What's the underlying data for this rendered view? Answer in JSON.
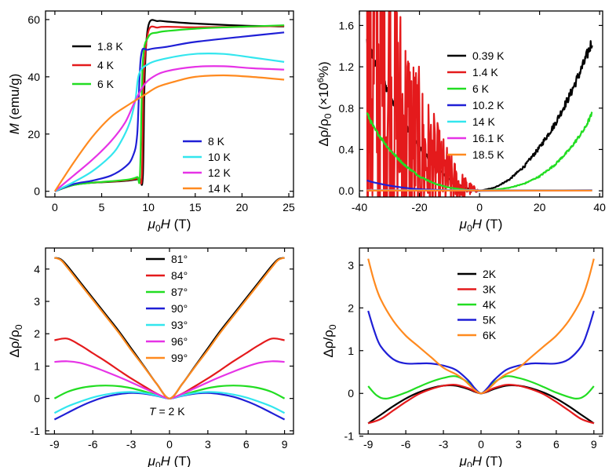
{
  "chart_data": [
    {
      "type": "line",
      "panel": "top-left",
      "xlabel_symbol": "μ",
      "xlabel_sub": "0",
      "xlabel_var": "H",
      "xlabel_unit": " (T)",
      "ylabel_var": "M",
      "ylabel_unit": " (emu/g)",
      "xlim": [
        -1,
        25.5
      ],
      "ylim": [
        -2,
        63
      ],
      "xticks": [
        0,
        5,
        10,
        15,
        20,
        25
      ],
      "yticks": [
        0,
        20,
        40,
        60
      ],
      "grid": false,
      "legend_placement": "top-left and center-right",
      "series": [
        {
          "name": "1.8 K",
          "color": "#000000",
          "legend_group": 0,
          "x": [
            0,
            2,
            4,
            6,
            8,
            9,
            9.4,
            9.6,
            10,
            11,
            12,
            15,
            20,
            24.5
          ],
          "y": [
            0,
            2.2,
            3,
            3.3,
            3.8,
            4.3,
            5,
            40,
            58,
            59.5,
            59.3,
            58.6,
            57.9,
            57.6
          ]
        },
        {
          "name": "4 K",
          "color": "#e41a1c",
          "legend_group": 0,
          "x": [
            0,
            2,
            4,
            6,
            8,
            9,
            9.3,
            9.5,
            10,
            11,
            12,
            15,
            20,
            24.5
          ],
          "y": [
            0,
            2.3,
            3,
            3.4,
            4,
            4.6,
            5.5,
            40,
            56,
            57.2,
            57.5,
            57.3,
            57.5,
            57.8
          ]
        },
        {
          "name": "6 K",
          "color": "#22dd22",
          "legend_group": 0,
          "x": [
            0,
            2,
            4,
            6,
            8,
            8.8,
            9.1,
            9.4,
            10,
            11,
            12,
            15,
            20,
            24.5
          ],
          "y": [
            0,
            2.2,
            3,
            3.5,
            4.2,
            5,
            6,
            45,
            54,
            55.5,
            56,
            56.8,
            57.5,
            58
          ]
        },
        {
          "name": "8 K",
          "color": "#1f1fd6",
          "legend_group": 1,
          "x": [
            0,
            2,
            4,
            6,
            7.5,
            8.3,
            8.8,
            9.2,
            10,
            12,
            15,
            20,
            24.5
          ],
          "y": [
            0,
            2.5,
            3.7,
            5.5,
            8.5,
            12,
            20,
            47,
            49.5,
            50.5,
            52.2,
            54,
            55.5
          ]
        },
        {
          "name": "10 K",
          "color": "#33e6ee",
          "legend_group": 1,
          "x": [
            0,
            2,
            4,
            6,
            7,
            8,
            8.6,
            9,
            10,
            12,
            15,
            18,
            21,
            24.5
          ],
          "y": [
            0,
            3.2,
            7,
            12.5,
            17,
            24,
            32,
            41,
            44.5,
            46.5,
            48,
            48,
            46.8,
            45.2
          ]
        },
        {
          "name": "12 K",
          "color": "#e633e6",
          "legend_group": 1,
          "x": [
            0,
            2,
            4,
            6,
            7.5,
            8.5,
            9.5,
            10.5,
            12,
            15,
            18,
            21,
            24.5
          ],
          "y": [
            0,
            5.5,
            11,
            17.5,
            24,
            31,
            37,
            40,
            42,
            43.5,
            43.7,
            43,
            42.5
          ]
        },
        {
          "name": "14 K",
          "color": "#ff8a1f",
          "legend_group": 1,
          "x": [
            0,
            2,
            4,
            6,
            8,
            9.5,
            11,
            13,
            15,
            18,
            21,
            24.5
          ],
          "y": [
            0,
            10,
            19,
            26,
            30.5,
            33.5,
            36.5,
            38.5,
            40,
            40.5,
            40,
            39
          ]
        }
      ]
    },
    {
      "type": "line",
      "panel": "top-right",
      "xlabel_symbol": "μ",
      "xlabel_sub": "0",
      "xlabel_var": "H",
      "xlabel_unit": " (T)",
      "ylabel_text": "Δρ/ρ",
      "ylabel_sub": "0",
      "ylabel_unit": " (×10",
      "ylabel_sup": "6",
      "ylabel_end": "%)",
      "xlim": [
        -40,
        41
      ],
      "ylim": [
        -0.06,
        1.74
      ],
      "xticks": [
        -40,
        -20,
        0,
        20,
        40
      ],
      "yticks": [
        0.0,
        0.4,
        0.8,
        1.2,
        1.6
      ],
      "ytick_labels": [
        "0.0",
        "0.4",
        "0.8",
        "1.2",
        "1.6"
      ],
      "grid": false,
      "legend_placement": "right",
      "series": [
        {
          "name": "0.39 K",
          "color": "#000000",
          "noise": 0.06,
          "x": [
            -37.5,
            -35,
            -30,
            -25,
            -20,
            -15,
            -10,
            -5,
            0,
            5,
            10,
            15,
            20,
            25,
            30,
            35,
            37.5
          ],
          "y": [
            1.45,
            1.25,
            0.92,
            0.64,
            0.42,
            0.24,
            0.11,
            0.03,
            0,
            0.03,
            0.11,
            0.24,
            0.42,
            0.64,
            0.92,
            1.25,
            1.45
          ]
        },
        {
          "name": "1.4 K",
          "color": "#e41a1c",
          "noise": 0.06,
          "x": [
            -37.5,
            -35,
            -30,
            -25,
            -20,
            -15,
            -10,
            -5,
            0
          ],
          "y": [
            1.3,
            1.12,
            0.84,
            0.59,
            0.38,
            0.22,
            0.1,
            0.03,
            0
          ]
        },
        {
          "name": "6 K",
          "color": "#22dd22",
          "noise": 0.02,
          "x": [
            -37.5,
            -35,
            -30,
            -25,
            -20,
            -15,
            -10,
            -5,
            0,
            5,
            10,
            15,
            20,
            25,
            30,
            35,
            37.5
          ],
          "y": [
            0.75,
            0.6,
            0.4,
            0.25,
            0.14,
            0.07,
            0.03,
            0.01,
            0,
            0.01,
            0.03,
            0.07,
            0.14,
            0.25,
            0.4,
            0.6,
            0.75
          ]
        },
        {
          "name": "10.2 K",
          "color": "#1f1fd6",
          "noise": 0,
          "x": [
            -37.5,
            -35,
            -30,
            -25,
            -20,
            -10,
            0,
            37.5
          ],
          "y": [
            0.1,
            0.08,
            0.05,
            0.03,
            0.015,
            0.005,
            0,
            0.005
          ]
        },
        {
          "name": "14 K",
          "color": "#33e6ee",
          "noise": 0,
          "x": [
            -37.5,
            37.5
          ],
          "y": [
            0.005,
            0.005
          ]
        },
        {
          "name": "16.1 K",
          "color": "#e633e6",
          "noise": 0,
          "x": [
            -37.5,
            37.5
          ],
          "y": [
            0.003,
            0.003
          ]
        },
        {
          "name": "18.5 K",
          "color": "#ff8a1f",
          "noise": 0,
          "x": [
            -37.5,
            37.5
          ],
          "y": [
            0.002,
            0.002
          ]
        }
      ]
    },
    {
      "type": "line",
      "panel": "bottom-left",
      "xlabel_symbol": "μ",
      "xlabel_sub": "0",
      "xlabel_var": "H",
      "xlabel_unit": " (T)",
      "ylabel_text": "Δρ/ρ",
      "ylabel_sub": "0",
      "xlim": [
        -9.7,
        9.7
      ],
      "ylim": [
        -1.1,
        4.65
      ],
      "xticks": [
        -9,
        -6,
        -3,
        0,
        3,
        6,
        9
      ],
      "yticks": [
        -1,
        0,
        1,
        2,
        3,
        4
      ],
      "grid": false,
      "legend_placement": "top-center",
      "annotation": {
        "var": "T",
        "text": " = 2 K"
      },
      "series": [
        {
          "name": "81°",
          "color": "#000000",
          "x": [
            -9,
            -8.5,
            -8,
            -7,
            -6,
            -5,
            -4,
            -3,
            -2,
            -1,
            0,
            1,
            2,
            3,
            4,
            5,
            6,
            7,
            8,
            8.5,
            9
          ],
          "y": [
            4.35,
            4.3,
            4.1,
            3.6,
            3.1,
            2.6,
            2.1,
            1.55,
            1.0,
            0.45,
            0,
            0.45,
            1.0,
            1.55,
            2.1,
            2.6,
            3.1,
            3.6,
            4.1,
            4.3,
            4.35
          ]
        },
        {
          "name": "84°",
          "color": "#e41a1c",
          "x": [
            -9,
            -8,
            -7,
            -6,
            -5,
            -4,
            -3,
            -2,
            -1,
            0,
            1,
            2,
            3,
            4,
            5,
            6,
            7,
            8,
            9
          ],
          "y": [
            1.8,
            1.85,
            1.65,
            1.4,
            1.15,
            0.88,
            0.62,
            0.38,
            0.15,
            0,
            0.15,
            0.38,
            0.62,
            0.88,
            1.15,
            1.4,
            1.65,
            1.85,
            1.8
          ]
        },
        {
          "name": "87°",
          "color": "#22dd22",
          "x": [
            -9,
            -8,
            -7,
            -6,
            -5,
            -4,
            -3,
            -2,
            -1,
            0,
            1,
            2,
            3,
            4,
            5,
            6,
            7,
            8,
            9
          ],
          "y": [
            0,
            0.2,
            0.32,
            0.38,
            0.4,
            0.38,
            0.32,
            0.22,
            0.1,
            0,
            0.1,
            0.22,
            0.32,
            0.38,
            0.4,
            0.38,
            0.32,
            0.2,
            0
          ]
        },
        {
          "name": "90°",
          "color": "#1f1fd6",
          "x": [
            -9,
            -8,
            -7,
            -6,
            -5,
            -4,
            -3,
            -2,
            -1,
            0,
            1,
            2,
            3,
            4,
            5,
            6,
            7,
            8,
            9
          ],
          "y": [
            -0.65,
            -0.45,
            -0.25,
            -0.08,
            0.05,
            0.13,
            0.17,
            0.15,
            0.08,
            0,
            0.08,
            0.15,
            0.17,
            0.13,
            0.05,
            -0.08,
            -0.25,
            -0.45,
            -0.65
          ]
        },
        {
          "name": "93°",
          "color": "#33e6ee",
          "x": [
            -9,
            -8,
            -7,
            -6,
            -5,
            -4,
            -3,
            -2,
            -1,
            0,
            1,
            2,
            3,
            4,
            5,
            6,
            7,
            8,
            9
          ],
          "y": [
            -0.45,
            -0.25,
            -0.1,
            0.03,
            0.12,
            0.18,
            0.2,
            0.17,
            0.09,
            0,
            0.09,
            0.17,
            0.2,
            0.18,
            0.12,
            0.03,
            -0.1,
            -0.25,
            -0.45
          ]
        },
        {
          "name": "96°",
          "color": "#e633e6",
          "x": [
            -9,
            -8,
            -7,
            -6,
            -5,
            -4,
            -3,
            -2,
            -1,
            0,
            1,
            2,
            3,
            4,
            5,
            6,
            7,
            8,
            9
          ],
          "y": [
            1.13,
            1.15,
            1.1,
            0.98,
            0.83,
            0.67,
            0.5,
            0.32,
            0.14,
            0,
            0.14,
            0.32,
            0.5,
            0.67,
            0.83,
            0.98,
            1.1,
            1.15,
            1.13
          ]
        },
        {
          "name": "99°",
          "color": "#ff8a1f",
          "x": [
            -9,
            -8.5,
            -8,
            -7,
            -6,
            -5,
            -4,
            -3,
            -2,
            -1,
            0,
            1,
            2,
            3,
            4,
            5,
            6,
            7,
            8,
            8.5,
            9
          ],
          "y": [
            4.35,
            4.28,
            4.05,
            3.55,
            3.05,
            2.55,
            2.05,
            1.5,
            0.98,
            0.45,
            0,
            0.45,
            0.98,
            1.5,
            2.05,
            2.55,
            3.05,
            3.55,
            4.05,
            4.28,
            4.35
          ]
        }
      ]
    },
    {
      "type": "line",
      "panel": "bottom-right",
      "xlabel_symbol": "μ",
      "xlabel_sub": "0",
      "xlabel_var": "H",
      "xlabel_unit": " (T)",
      "ylabel_text": "Δρ/ρ",
      "ylabel_sub": "0",
      "xlim": [
        -9.7,
        9.7
      ],
      "ylim": [
        -0.95,
        3.4
      ],
      "xticks": [
        -9,
        -6,
        -3,
        0,
        3,
        6,
        9
      ],
      "yticks": [
        -1,
        0,
        1,
        2,
        3
      ],
      "grid": false,
      "legend_placement": "top-center",
      "series": [
        {
          "name": "2K",
          "color": "#000000",
          "x": [
            -9,
            -8,
            -7,
            -6,
            -5,
            -4,
            -3,
            -2,
            -1,
            -0.5,
            0,
            0.5,
            1,
            2,
            3,
            4,
            5,
            6,
            7,
            8,
            9
          ],
          "y": [
            -0.7,
            -0.5,
            -0.3,
            -0.12,
            0.02,
            0.12,
            0.18,
            0.18,
            0.1,
            0.04,
            0,
            0.04,
            0.1,
            0.18,
            0.18,
            0.12,
            0.02,
            -0.12,
            -0.3,
            -0.5,
            -0.7
          ]
        },
        {
          "name": "3K",
          "color": "#e41a1c",
          "x": [
            -9,
            -8,
            -7,
            -6,
            -5,
            -4,
            -3,
            -2,
            -1,
            -0.5,
            0,
            0.5,
            1,
            2,
            3,
            4,
            5,
            6,
            7,
            8,
            9
          ],
          "y": [
            -0.7,
            -0.6,
            -0.4,
            -0.2,
            -0.02,
            0.1,
            0.18,
            0.2,
            0.12,
            0.05,
            0,
            0.05,
            0.12,
            0.2,
            0.18,
            0.1,
            -0.02,
            -0.2,
            -0.4,
            -0.6,
            -0.7
          ]
        },
        {
          "name": "4K",
          "color": "#22dd22",
          "x": [
            -9,
            -8.3,
            -7.5,
            -6,
            -5,
            -4,
            -3,
            -2,
            -1,
            -0.5,
            0,
            0.5,
            1,
            2,
            3,
            4,
            5,
            6,
            7.5,
            8.3,
            9
          ],
          "y": [
            0.17,
            -0.05,
            -0.12,
            0.02,
            0.15,
            0.27,
            0.36,
            0.4,
            0.25,
            0.1,
            0,
            0.1,
            0.25,
            0.4,
            0.36,
            0.27,
            0.15,
            0.02,
            -0.12,
            -0.05,
            0.17
          ]
        },
        {
          "name": "5K",
          "color": "#1f1fd6",
          "x": [
            -9,
            -8.5,
            -8,
            -7,
            -6,
            -5,
            -4,
            -3,
            -2,
            -1,
            -0.5,
            0,
            0.5,
            1,
            2,
            3,
            4,
            5,
            6,
            7,
            8,
            8.5,
            9
          ],
          "y": [
            1.93,
            1.45,
            1.1,
            0.8,
            0.7,
            0.7,
            0.7,
            0.65,
            0.55,
            0.3,
            0.12,
            0,
            0.12,
            0.3,
            0.55,
            0.65,
            0.7,
            0.7,
            0.7,
            0.8,
            1.1,
            1.45,
            1.93
          ]
        },
        {
          "name": "6K",
          "color": "#ff8a1f",
          "x": [
            -9,
            -8.5,
            -8,
            -7,
            -6,
            -5,
            -4,
            -3,
            -2,
            -1.5,
            -1,
            -0.5,
            0,
            0.5,
            1,
            1.5,
            2,
            3,
            4,
            5,
            6,
            7,
            8,
            8.5,
            9
          ],
          "y": [
            3.15,
            2.6,
            2.2,
            1.7,
            1.35,
            1.1,
            0.85,
            0.6,
            0.45,
            0.35,
            0.22,
            0.08,
            0,
            0.08,
            0.22,
            0.35,
            0.45,
            0.6,
            0.85,
            1.1,
            1.35,
            1.7,
            2.2,
            2.6,
            3.15
          ]
        }
      ]
    }
  ]
}
